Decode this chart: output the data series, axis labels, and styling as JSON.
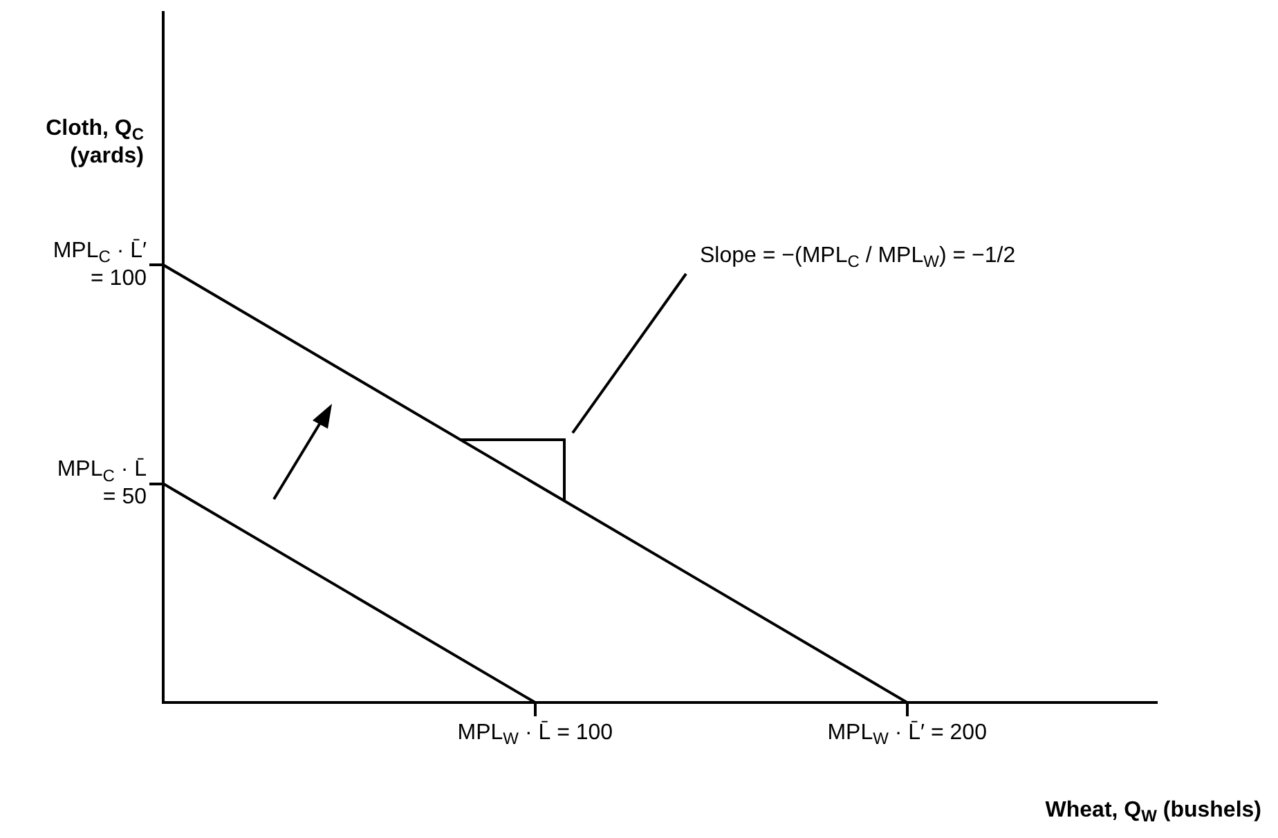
{
  "chart_data": {
    "type": "line",
    "ylabel": "Cloth, Q$_{C}$\n(yards)",
    "xlabel": "Wheat, Q$_{W}$ (bushels)",
    "series": [
      {
        "color": "#000000",
        "x": [
          0,
          100
        ],
        "values": [
          50,
          0
        ]
      },
      {
        "color": "#000000",
        "x": [
          0,
          200
        ],
        "values": [
          100,
          0
        ]
      }
    ],
    "xlim": [
      0,
      267
    ],
    "ylim": [
      0,
      158
    ],
    "xticks": [
      {
        "value": 100,
        "label": "MPL$_{W}$ · L̄ = 100"
      },
      {
        "value": 200,
        "label": "MPL$_{W}$ · L̄′ = 200"
      }
    ],
    "yticks": [
      {
        "value": 50,
        "label": "MPL$_{C}$ · L̄\n= 50"
      },
      {
        "value": 100,
        "label": "MPL$_{C}$ · L̄′\n= 100"
      }
    ],
    "annotations": [
      "Slope = −(MPL$_{C}$ / MPL$_{W}$) = −1/2"
    ],
    "grid": false,
    "legend": false,
    "marker": "none",
    "line_style": "solid"
  }
}
